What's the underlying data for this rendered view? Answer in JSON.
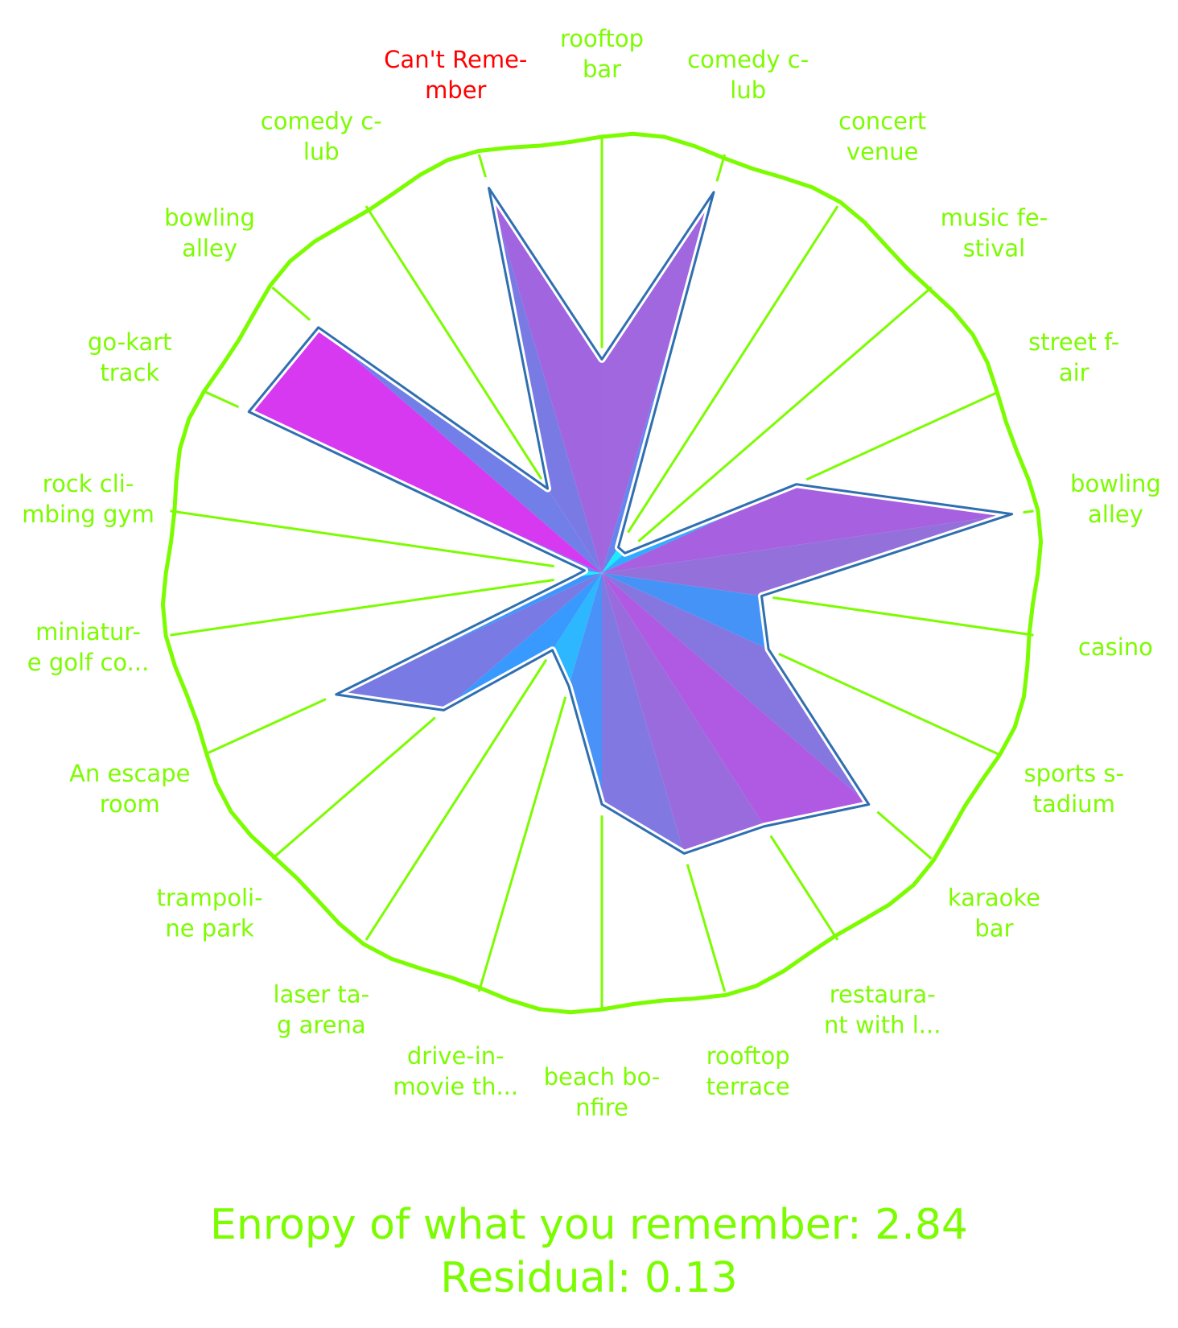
{
  "chart_data": {
    "type": "radar",
    "title": "",
    "categories": [
      [
        "rooftop",
        "bar"
      ],
      [
        "comedy c-",
        "lub"
      ],
      [
        "concert",
        "venue"
      ],
      [
        "music fe-",
        "stival"
      ],
      [
        "street f-",
        "air"
      ],
      [
        "bowling",
        "alley"
      ],
      [
        "casino"
      ],
      [
        "sports s-",
        "tadium"
      ],
      [
        "karaoke",
        "bar"
      ],
      [
        "restaura-",
        "nt with l..."
      ],
      [
        "rooftop",
        "terrace"
      ],
      [
        "beach bo-",
        "nfire"
      ],
      [
        "drive-in-",
        "movie th..."
      ],
      [
        "laser ta-",
        "g arena"
      ],
      [
        "trampoli-",
        "ne park"
      ],
      [
        "An escape",
        "room"
      ],
      [
        "miniatur-",
        "e golf co..."
      ],
      [
        "rock cli-",
        "mbing gym"
      ],
      [
        "go-kart",
        "track"
      ],
      [
        "bowling",
        "alley"
      ],
      [
        "comedy c-",
        "lub"
      ],
      [
        "Can't Reme-",
        "mber"
      ]
    ],
    "highlighted_category_index": 21,
    "values": [
      0.49,
      0.91,
      0.07,
      0.07,
      0.49,
      0.95,
      0.37,
      0.42,
      0.81,
      0.69,
      0.67,
      0.53,
      0.27,
      0.21,
      0.48,
      0.67,
      0.07,
      0.04,
      0.89,
      0.86,
      0.23,
      0.92
    ],
    "ylim": [
      0,
      1
    ],
    "colors": {
      "axis": "#7cfc00",
      "label": "#7cfc00",
      "highlight_label": "#ff0000",
      "outline": "#2f6fb0",
      "gradient": [
        "#00ffff",
        "#1e90ff",
        "#8a5fd6",
        "#ff00ff"
      ]
    }
  },
  "footer": {
    "line1": "Enropy of what you remember: 2.84",
    "line2": "Residual: 0.13"
  }
}
